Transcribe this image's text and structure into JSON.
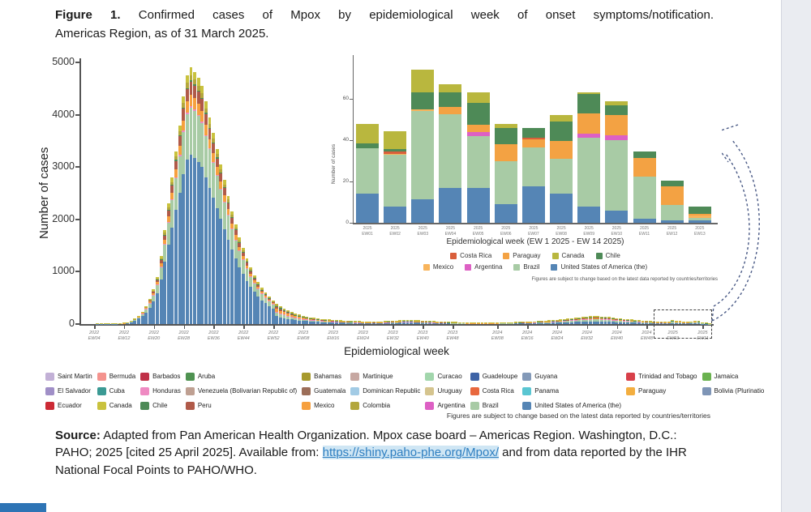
{
  "figure": {
    "label": "Figure 1.",
    "caption_line1": "Confirmed cases of Mpox by epidemiological week of onset symptoms/notification.",
    "caption_line2": "Americas Region, as of 31 March 2025."
  },
  "chart_data": [
    {
      "id": "main",
      "type": "bar",
      "stacked": true,
      "ylabel": "Number of cases",
      "xlabel": "Epidemiological week",
      "ylim": [
        0,
        5000
      ],
      "yticks": [
        0,
        1000,
        2000,
        3000,
        4000,
        5000
      ],
      "weeks_start": "2022 EW01",
      "weeks_end": "2025 EW13",
      "totals": [
        0,
        0,
        0,
        0,
        1,
        1,
        2,
        3,
        5,
        8,
        14,
        22,
        35,
        60,
        100,
        160,
        240,
        340,
        480,
        660,
        900,
        1300,
        1800,
        2300,
        2800,
        3300,
        3800,
        4350,
        4750,
        4900,
        4820,
        4700,
        4550,
        4250,
        3950,
        3650,
        3350,
        3050,
        2750,
        2450,
        2150,
        1900,
        1650,
        1450,
        1250,
        1080,
        930,
        800,
        690,
        600,
        520,
        450,
        390,
        340,
        300,
        260,
        230,
        200,
        180,
        160,
        145,
        130,
        120,
        110,
        100,
        92,
        85,
        80,
        75,
        70,
        66,
        62,
        58,
        55,
        52,
        50,
        48,
        46,
        45,
        46,
        48,
        52,
        56,
        60,
        65,
        70,
        74,
        76,
        75,
        72,
        68,
        64,
        60,
        56,
        52,
        48,
        45,
        42,
        40,
        38,
        36,
        34,
        32,
        30,
        28,
        27,
        26,
        25,
        25,
        26,
        27,
        28,
        30,
        32,
        34,
        36,
        38,
        40,
        42,
        45,
        48,
        52,
        56,
        60,
        65,
        70,
        76,
        82,
        88,
        95,
        102,
        110,
        118,
        126,
        134,
        142,
        148,
        152,
        150,
        146,
        140,
        132,
        124,
        116,
        108,
        100,
        92,
        85,
        78,
        72,
        66,
        60,
        55,
        50,
        46,
        42,
        48,
        45,
        74,
        67,
        63,
        48,
        46,
        52,
        63,
        59,
        35,
        21,
        8
      ],
      "xticks": [
        {
          "label": "2022 EW04",
          "index": 3
        },
        {
          "label": "2022 EW12",
          "index": 11
        },
        {
          "label": "2022 EW20",
          "index": 19
        },
        {
          "label": "2022 EW28",
          "index": 27
        },
        {
          "label": "2022 EW36",
          "index": 35
        },
        {
          "label": "2022 EW44",
          "index": 43
        },
        {
          "label": "2022 EW52",
          "index": 51
        },
        {
          "label": "2023 EW08",
          "index": 59
        },
        {
          "label": "2023 EW16",
          "index": 67
        },
        {
          "label": "2023 EW24",
          "index": 75
        },
        {
          "label": "2023 EW32",
          "index": 83
        },
        {
          "label": "2023 EW40",
          "index": 91
        },
        {
          "label": "2023 EW48",
          "index": 99
        },
        {
          "label": "2024 EW08",
          "index": 111
        },
        {
          "label": "2024 EW16",
          "index": 119
        },
        {
          "label": "2024 EW24",
          "index": 127
        },
        {
          "label": "2024 EW32",
          "index": 135
        },
        {
          "label": "2024 EW40",
          "index": 143
        },
        {
          "label": "2024 EW48",
          "index": 151
        },
        {
          "label": "2025 EW03",
          "index": 158
        },
        {
          "label": "2025 EW11",
          "index": 166
        }
      ],
      "series": [
        {
          "name": "United States of America (the)",
          "color": "#5585b5"
        },
        {
          "name": "Brazil",
          "color": "#a8cba5"
        },
        {
          "name": "Honduras",
          "color": "#ef8ac2"
        },
        {
          "name": "Mexico",
          "color": "#f6a03f"
        },
        {
          "name": "Peru",
          "color": "#b05a49"
        },
        {
          "name": "Chile",
          "color": "#4e8a57"
        },
        {
          "name": "Colombia",
          "color": "#b3a73d"
        },
        {
          "name": "Canada",
          "color": "#c9c23e"
        }
      ],
      "composition_by_year": {
        "2022": [
          0.66,
          0.185,
          0.005,
          0.045,
          0.05,
          0.005,
          0.02,
          0.03
        ],
        "2023": [
          0.38,
          0.22,
          0.01,
          0.14,
          0.09,
          0.05,
          0.07,
          0.04
        ],
        "2024": [
          0.33,
          0.32,
          0.01,
          0.12,
          0.05,
          0.06,
          0.06,
          0.05
        ],
        "2025": [
          0.2,
          0.44,
          0.0,
          0.16,
          0.0,
          0.12,
          0.0,
          0.08
        ]
      }
    },
    {
      "id": "inset",
      "type": "bar",
      "stacked": true,
      "ylabel": "Number of cases",
      "xlabel": "Epidemiological week (EW 1 2025 - EW 14 2025)",
      "ylim": [
        0,
        75
      ],
      "yticks": [
        0,
        20,
        40,
        60
      ],
      "categories": [
        "2025 EW01",
        "2025 EW02",
        "2025 EW03",
        "2025 EW04",
        "2025 EW05",
        "2025 EW06",
        "2025 EW07",
        "2025 EW08",
        "2025 EW09",
        "2025 EW10",
        "2025 EW11",
        "2025 EW12",
        "2025 EW13"
      ],
      "series": [
        {
          "name": "United States of America (the)",
          "color": "#5585b5",
          "values": [
            14,
            8,
            11.5,
            17,
            17,
            9,
            17.5,
            14,
            8,
            6,
            2,
            1,
            1
          ]
        },
        {
          "name": "Brazil",
          "color": "#a8cba5",
          "values": [
            22,
            25,
            42.5,
            35.5,
            25,
            21,
            19,
            17,
            33,
            34,
            20.5,
            7.5,
            1.5
          ]
        },
        {
          "name": "Argentina",
          "color": "#dd60c4",
          "values": [
            0,
            0,
            0,
            0,
            2,
            0,
            0,
            0,
            2,
            2.5,
            0,
            0,
            0
          ]
        },
        {
          "name": "Mexico",
          "color": "#f8b45c",
          "values": [
            0,
            0.5,
            1,
            0,
            0,
            0,
            0,
            0,
            0,
            0,
            0,
            0,
            1
          ]
        },
        {
          "name": "Paraguay",
          "color": "#f3a243",
          "values": [
            0,
            0,
            0,
            3.5,
            3.5,
            8,
            4,
            8.5,
            10,
            9.5,
            9,
            9,
            1
          ]
        },
        {
          "name": "Costa Rica",
          "color": "#d95f3b",
          "values": [
            0,
            1,
            0,
            0,
            0,
            0,
            0.5,
            0,
            0,
            0,
            0,
            0,
            0
          ]
        },
        {
          "name": "Chile",
          "color": "#4e8a57",
          "values": [
            2.5,
            1,
            8,
            7,
            10.5,
            8,
            5,
            9.5,
            9.5,
            5,
            3,
            3,
            3.5
          ]
        },
        {
          "name": "Canada",
          "color": "#b9b73e",
          "values": [
            9.5,
            9,
            11,
            4,
            5,
            2,
            0,
            3,
            0.5,
            2,
            0,
            0,
            0
          ]
        }
      ],
      "legend_rows": [
        [
          "Costa Rica",
          "Paraguay",
          "Canada",
          "Chile"
        ],
        [
          "Mexico",
          "Argentina",
          "Brazil",
          "United States of America (the)"
        ]
      ],
      "note": "Figures are subject to change based on the latest data reported by countries/territories"
    }
  ],
  "legend": {
    "columns": [
      [
        {
          "label": "Saint Martin",
          "color": "#c2b0d6"
        },
        {
          "label": "El Salvador",
          "color": "#a08fc7"
        },
        {
          "label": "Ecuador",
          "color": "#cc2a35"
        }
      ],
      [
        {
          "label": "Bermuda",
          "color": "#f4938e"
        },
        {
          "label": "Cuba",
          "color": "#3b9a94"
        },
        {
          "label": "Canada",
          "color": "#c9c23e"
        }
      ],
      [
        {
          "label": "Barbados",
          "color": "#c03148"
        },
        {
          "label": "Honduras",
          "color": "#ef8ac2"
        },
        {
          "label": "Chile",
          "color": "#4e8a57"
        }
      ],
      [
        {
          "label": "Aruba",
          "color": "#4f9251"
        },
        {
          "label": "Venezuela (Bolivarian Republic of)",
          "color": "#bfa092"
        },
        {
          "label": "Peru",
          "color": "#b05a49"
        }
      ],
      [
        {
          "label": "Bahamas",
          "color": "#a79a2d"
        },
        {
          "label": "Guatemala",
          "color": "#9c6e59"
        },
        {
          "label": "Mexico",
          "color": "#f6a03f"
        }
      ],
      [
        {
          "label": "Martinique",
          "color": "#c7a8a2"
        },
        {
          "label": "Dominican Republic",
          "color": "#a2cbe5"
        },
        {
          "label": "Colombia",
          "color": "#b3a73d"
        }
      ],
      [
        {
          "label": "Curacao",
          "color": "#a2d6ac"
        },
        {
          "label": "Uruguay",
          "color": "#d5c48e"
        },
        {
          "label": "Argentina",
          "color": "#dd60c4"
        }
      ],
      [
        {
          "label": "Guadeloupe",
          "color": "#3e63a6"
        },
        {
          "label": "Costa Rica",
          "color": "#e8683e"
        },
        {
          "label": "Brazil",
          "color": "#a8cba5"
        }
      ],
      [
        {
          "label": "Guyana",
          "color": "#8399b8"
        },
        {
          "label": "Panama",
          "color": "#5ac6d2"
        },
        {
          "label": "United States of America (the)",
          "color": "#5585b5"
        }
      ],
      [
        {
          "label": "Trinidad and Tobago",
          "color": "#d8404a"
        },
        {
          "label": "Paraguay",
          "color": "#f3ae3f"
        }
      ],
      [
        {
          "label": "Jamaica",
          "color": "#6ab24f"
        },
        {
          "label": "Bolivia (Plurinatio",
          "color": "#7e95b6"
        }
      ]
    ]
  },
  "legend_note": "Figures are subject to change based on the latest data reported by countries/territories",
  "source": {
    "label": "Source:",
    "text1": " Adapted from Pan American Health Organization. Mpox case board – Americas Region.  Washington, D.C.: PAHO; 2025 [cited 25 April 2025]. Available from: ",
    "link": "https://shiny.paho-phe.org/Mpox/",
    "text2": " and from data reported by the IHR National Focal Points to PAHO/WHO."
  }
}
